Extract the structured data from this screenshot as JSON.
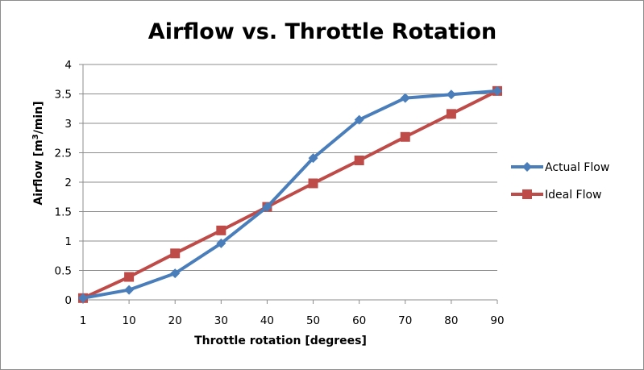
{
  "chart_data": {
    "type": "line",
    "title": "Airflow vs. Throttle Rotation",
    "xlabel": "Throttle rotation [degrees]",
    "ylabel_parts": [
      "Airflow [m",
      "3",
      "/min]"
    ],
    "categories": [
      "1",
      "10",
      "20",
      "30",
      "40",
      "50",
      "60",
      "70",
      "80",
      "90"
    ],
    "ylim": [
      0,
      4
    ],
    "yticks": [
      "0",
      "0.5",
      "1",
      "1.5",
      "2",
      "2.5",
      "3",
      "3.5",
      "4"
    ],
    "grid": "horizontal",
    "legend_position": "right",
    "series": [
      {
        "name": "Actual Flow",
        "color": "#4a7ebb",
        "marker": "diamond",
        "values": [
          0.03,
          0.17,
          0.45,
          0.96,
          1.58,
          2.41,
          3.06,
          3.43,
          3.49,
          3.55
        ]
      },
      {
        "name": "Ideal Flow",
        "color": "#be4b48",
        "marker": "square",
        "values": [
          0.03,
          0.39,
          0.79,
          1.18,
          1.58,
          1.98,
          2.37,
          2.77,
          3.16,
          3.55
        ]
      }
    ]
  }
}
